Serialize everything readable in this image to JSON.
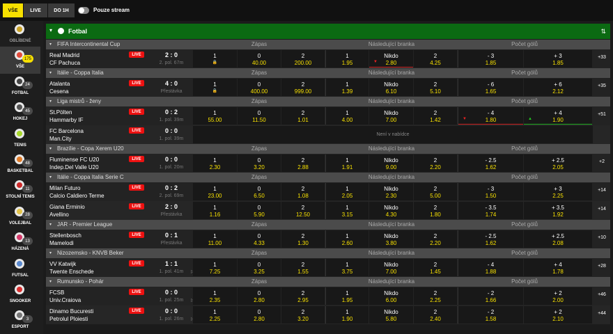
{
  "topbar": {
    "tab_all": "VŠE",
    "tab_live": "LIVE",
    "tab_1h": "DO 1H",
    "stream_label": "Pouze stream"
  },
  "sidebar": {
    "items": [
      {
        "label": "OBLÍBENÉ",
        "badge": "",
        "icon": "star-icon",
        "color": "#c9a227"
      },
      {
        "label": "VŠE",
        "badge": "175",
        "icon": "all-sports-icon",
        "color": "#e14b3b"
      },
      {
        "label": "FOTBAL",
        "badge": "24",
        "icon": "soccer-ball-icon",
        "color": "#444444"
      },
      {
        "label": "HOKEJ",
        "badge": "45",
        "icon": "hockey-icon",
        "color": "#555555"
      },
      {
        "label": "TENIS",
        "badge": "",
        "icon": "tennis-ball-icon",
        "color": "#a8d92b"
      },
      {
        "label": "BASKETBAL",
        "badge": "48",
        "icon": "basketball-icon",
        "color": "#e07b28"
      },
      {
        "label": "STOLNÍ TENIS",
        "badge": "11",
        "icon": "table-tennis-icon",
        "color": "#cc2a2a"
      },
      {
        "label": "VOLEJBAL",
        "badge": "28",
        "icon": "volleyball-icon",
        "color": "#e3c44a"
      },
      {
        "label": "HÁZENÁ",
        "badge": "13",
        "icon": "handball-icon",
        "color": "#d43a6a"
      },
      {
        "label": "FUTSAL",
        "badge": "",
        "icon": "futsal-ball-icon",
        "color": "#5a8ad0"
      },
      {
        "label": "SNOOKER",
        "badge": "",
        "icon": "snooker-icon",
        "color": "#d83030"
      },
      {
        "label": "ESPORT",
        "badge": "3",
        "icon": "esport-icon",
        "color": "#777777"
      }
    ]
  },
  "sport": {
    "title": "Fotbal",
    "icon": "soccer-ball-icon",
    "sort_icon": "sort-icon"
  },
  "columns": {
    "c1": "Zápas",
    "c2": "Následující branka",
    "c3": "Počet gólů"
  },
  "leagues": {
    "l0": "FIFA Intercontinental Cup",
    "l1": "Itálie - Coppa Italia",
    "l2": "Liga mistrů - ženy",
    "l3": "Brazílie - Copa Xerem U20",
    "l4": "Itálie - Coppa Italia Serie C",
    "l5": "JAR - Premier League",
    "l6": "Nizozemsko - KNVB Beker",
    "l7": "Rumunsko - Pohár"
  },
  "matches": {
    "m0": {
      "home": "Real Madrid",
      "away": "CF Pachuca",
      "live": "LIVE",
      "score": "2 : 0",
      "status": "2. pol. 67m",
      "o": [
        {
          "l": "1",
          "v": ""
        },
        {
          "l": "0",
          "v": "40.00"
        },
        {
          "l": "2",
          "v": "200.00"
        },
        {
          "l": "1",
          "v": "1.95"
        },
        {
          "l": "Nikdo",
          "v": "2.80"
        },
        {
          "l": "2",
          "v": "4.25"
        },
        {
          "l": "- 3",
          "v": "1.85"
        },
        {
          "l": "+ 3",
          "v": "1.85"
        }
      ],
      "more": "+33"
    },
    "m1": {
      "home": "Atalanta",
      "away": "Cesena",
      "live": "LIVE",
      "score": "4 : 0",
      "status": "Přestávka",
      "o": [
        {
          "l": "1",
          "v": ""
        },
        {
          "l": "0",
          "v": "400.00"
        },
        {
          "l": "2",
          "v": "999.00"
        },
        {
          "l": "1",
          "v": "1.39"
        },
        {
          "l": "Nikdo",
          "v": "6.10"
        },
        {
          "l": "2",
          "v": "5.10"
        },
        {
          "l": "- 6",
          "v": "1.65"
        },
        {
          "l": "+ 6",
          "v": "2.12"
        }
      ],
      "more": "+35"
    },
    "m2": {
      "home": "St.Pölten",
      "away": "Hammarby IF",
      "live": "LIVE",
      "score": "0 : 2",
      "status": "1. pol. 39m",
      "o": [
        {
          "l": "1",
          "v": "55.00"
        },
        {
          "l": "0",
          "v": "11.50"
        },
        {
          "l": "2",
          "v": "1.01"
        },
        {
          "l": "1",
          "v": "4.00"
        },
        {
          "l": "Nikdo",
          "v": "7.00"
        },
        {
          "l": "2",
          "v": "1.42"
        },
        {
          "l": "- 4",
          "v": "1.80"
        },
        {
          "l": "+ 4",
          "v": "1.90"
        }
      ],
      "more": "+51"
    },
    "m3": {
      "home": "FC Barcelona",
      "away": "Man.City",
      "live": "LIVE",
      "score": "0 : 0",
      "status": "1. pol. 39m",
      "na": "Není v nabídce"
    },
    "m4": {
      "home": "Fluminense FC U20",
      "away": "Indep.Del Valle U20",
      "live": "LIVE",
      "score": "0 : 0",
      "status": "1. pol. 20m",
      "o": [
        {
          "l": "1",
          "v": "2.30"
        },
        {
          "l": "0",
          "v": "3.20"
        },
        {
          "l": "2",
          "v": "2.88"
        },
        {
          "l": "1",
          "v": "1.91"
        },
        {
          "l": "Nikdo",
          "v": "9.00"
        },
        {
          "l": "2",
          "v": "2.20"
        },
        {
          "l": "- 2.5",
          "v": "1.62"
        },
        {
          "l": "+ 2.5",
          "v": "2.05"
        }
      ],
      "more": "+2"
    },
    "m5": {
      "home": "Milan Futuro",
      "away": "Calcio Caldiero Terme",
      "live": "LIVE",
      "score": "0 : 2",
      "status": "2. pol. 69m",
      "o": [
        {
          "l": "1",
          "v": "23.00"
        },
        {
          "l": "0",
          "v": "6.50"
        },
        {
          "l": "2",
          "v": "1.08"
        },
        {
          "l": "1",
          "v": "2.05"
        },
        {
          "l": "Nikdo",
          "v": "2.30"
        },
        {
          "l": "2",
          "v": "5.00"
        },
        {
          "l": "- 3",
          "v": "1.50"
        },
        {
          "l": "+ 3",
          "v": "2.25"
        }
      ],
      "more": "+14"
    },
    "m6": {
      "home": "Giana Erminio",
      "away": "Avellino",
      "live": "LIVE",
      "score": "2 : 0",
      "status": "Přestávka",
      "o": [
        {
          "l": "1",
          "v": "1.16"
        },
        {
          "l": "0",
          "v": "5.90"
        },
        {
          "l": "2",
          "v": "12.50"
        },
        {
          "l": "1",
          "v": "3.15"
        },
        {
          "l": "Nikdo",
          "v": "4.30"
        },
        {
          "l": "2",
          "v": "1.80"
        },
        {
          "l": "- 3.5",
          "v": "1.74"
        },
        {
          "l": "+ 3.5",
          "v": "1.92"
        }
      ],
      "more": "+14"
    },
    "m7": {
      "home": "Stellenbosch",
      "away": "Mamelodi",
      "live": "LIVE",
      "score": "0 : 1",
      "status": "Přestávka",
      "o": [
        {
          "l": "1",
          "v": "11.00"
        },
        {
          "l": "0",
          "v": "4.33"
        },
        {
          "l": "2",
          "v": "1.30"
        },
        {
          "l": "1",
          "v": "2.60"
        },
        {
          "l": "Nikdo",
          "v": "3.80"
        },
        {
          "l": "2",
          "v": "2.20"
        },
        {
          "l": "- 2.5",
          "v": "1.62"
        },
        {
          "l": "+ 2.5",
          "v": "2.08"
        }
      ],
      "more": "+10"
    },
    "m8": {
      "home": "VV Katwijk",
      "away": "Twente Enschede",
      "live": "LIVE",
      "score": "1 : 1",
      "status": "1. pol. 41m",
      "o": [
        {
          "l": "1",
          "v": "7.25"
        },
        {
          "l": "0",
          "v": "3.25"
        },
        {
          "l": "2",
          "v": "1.55"
        },
        {
          "l": "1",
          "v": "3.75"
        },
        {
          "l": "Nikdo",
          "v": "7.00"
        },
        {
          "l": "2",
          "v": "1.45"
        },
        {
          "l": "- 4",
          "v": "1.88"
        },
        {
          "l": "+ 4",
          "v": "1.78"
        }
      ],
      "more": "+28"
    },
    "m9": {
      "home": "FCSB",
      "away": "Univ.Craiova",
      "live": "LIVE",
      "score": "0 : 0",
      "status": "1. pol. 25m",
      "o": [
        {
          "l": "1",
          "v": "2.35"
        },
        {
          "l": "0",
          "v": "2.80"
        },
        {
          "l": "2",
          "v": "2.95"
        },
        {
          "l": "1",
          "v": "1.95"
        },
        {
          "l": "Nikdo",
          "v": "6.00"
        },
        {
          "l": "2",
          "v": "2.25"
        },
        {
          "l": "- 2",
          "v": "1.66"
        },
        {
          "l": "+ 2",
          "v": "2.00"
        }
      ],
      "more": "+46"
    },
    "m10": {
      "home": "Dinamo Bucuresti",
      "away": "Petrolul Ploiesti",
      "live": "LIVE",
      "score": "0 : 0",
      "status": "1. pol. 26m",
      "o": [
        {
          "l": "1",
          "v": "2.25"
        },
        {
          "l": "0",
          "v": "2.80"
        },
        {
          "l": "2",
          "v": "3.20"
        },
        {
          "l": "1",
          "v": "1.90"
        },
        {
          "l": "Nikdo",
          "v": "5.80"
        },
        {
          "l": "2",
          "v": "2.40"
        },
        {
          "l": "- 2",
          "v": "1.58"
        },
        {
          "l": "+ 2",
          "v": "2.10"
        }
      ],
      "more": "+44"
    }
  }
}
